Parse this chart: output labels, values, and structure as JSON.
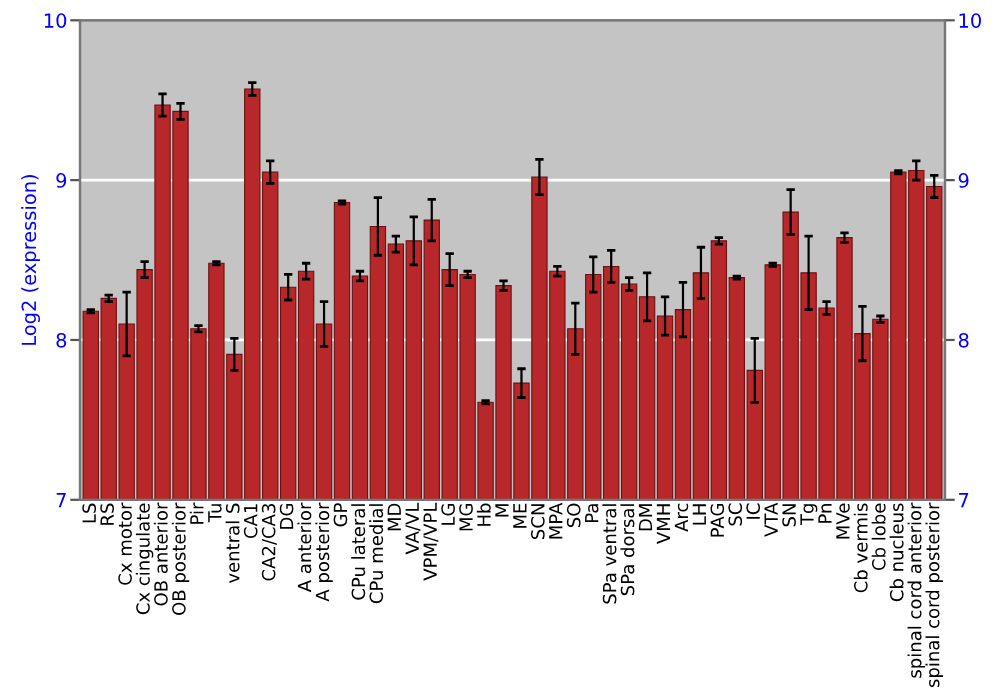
{
  "chart_data": {
    "type": "bar",
    "ylabel": "Log2 (expression)",
    "categories": [
      "LS",
      "RS",
      "Cx motor",
      "Cx cingulate",
      "OB anterior",
      "OB posterior",
      "Pir",
      "Tu",
      "ventral S",
      "CA1",
      "CA2/CA3",
      "DG",
      "A anterior",
      "A posterior",
      "GP",
      "CPu lateral",
      "CPu medial",
      "MD",
      "VA/VL",
      "VPM/VPL",
      "LG",
      "MG",
      "Hb",
      "M",
      "ME",
      "SCN",
      "MPA",
      "SO",
      "Pa",
      "SPa ventral",
      "SPa dorsal",
      "DM",
      "VMH",
      "Arc",
      "LH",
      "PAG",
      "SC",
      "IC",
      "VTA",
      "SN",
      "Tg",
      "Pn",
      "MVe",
      "Cb vermis",
      "Cb lobe",
      "Cb nucleus",
      "spinal cord anterior",
      "spinal cord posterior"
    ],
    "values": [
      8.18,
      8.26,
      8.1,
      8.44,
      9.47,
      9.43,
      8.07,
      8.48,
      7.91,
      9.57,
      9.05,
      8.33,
      8.43,
      8.1,
      8.86,
      8.4,
      8.71,
      8.6,
      8.62,
      8.75,
      8.44,
      8.41,
      7.61,
      8.34,
      7.73,
      9.02,
      8.43,
      8.07,
      8.41,
      8.46,
      8.35,
      8.27,
      8.15,
      8.19,
      8.42,
      8.62,
      8.39,
      7.81,
      8.47,
      8.8,
      8.42,
      8.2,
      8.64,
      8.04,
      8.13,
      9.05,
      9.06,
      8.96
    ],
    "errors": [
      0.01,
      0.02,
      0.2,
      0.05,
      0.07,
      0.05,
      0.02,
      0.01,
      0.1,
      0.04,
      0.07,
      0.08,
      0.05,
      0.14,
      0.01,
      0.03,
      0.18,
      0.05,
      0.15,
      0.13,
      0.1,
      0.02,
      0.01,
      0.03,
      0.09,
      0.11,
      0.03,
      0.16,
      0.11,
      0.1,
      0.04,
      0.15,
      0.12,
      0.17,
      0.16,
      0.02,
      0.01,
      0.2,
      0.01,
      0.14,
      0.23,
      0.04,
      0.03,
      0.17,
      0.02,
      0.01,
      0.06,
      0.07
    ],
    "color": "#b8282a",
    "ylim": [
      7,
      10
    ],
    "yticks": [
      7,
      8,
      9,
      10
    ],
    "y2lim": [
      7,
      10
    ],
    "y2ticks": [
      7,
      8,
      9,
      10
    ],
    "grid": "y"
  }
}
